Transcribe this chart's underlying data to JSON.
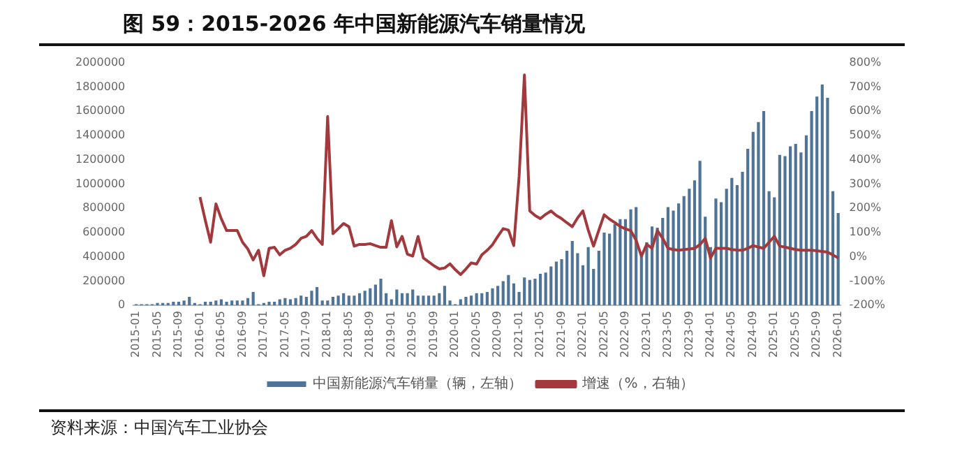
{
  "chart_data": {
    "type": "bar",
    "title": "图 59：2015-2026 年中国新能源汽车销量情况",
    "categories": [
      "2015-01",
      null,
      null,
      null,
      "2015-05",
      null,
      null,
      null,
      "2015-09",
      null,
      null,
      null,
      "2016-01",
      null,
      null,
      null,
      "2016-05",
      null,
      null,
      null,
      "2016-09",
      null,
      null,
      null,
      "2017-01",
      null,
      null,
      null,
      "2017-05",
      null,
      null,
      null,
      "2017-09",
      null,
      null,
      null,
      "2018-01",
      null,
      null,
      null,
      "2018-05",
      null,
      null,
      null,
      "2018-09",
      null,
      null,
      null,
      "2019-01",
      null,
      null,
      null,
      "2019-05",
      null,
      null,
      null,
      "2019-09",
      null,
      null,
      null,
      "2020-01",
      null,
      null,
      null,
      "2020-05",
      null,
      null,
      null,
      "2020-09",
      null,
      null,
      null,
      "2021-01",
      null,
      null,
      null,
      "2021-05",
      null,
      null,
      null,
      "2021-09",
      null,
      null,
      null,
      "2022-01",
      null,
      null,
      null,
      "2022-05",
      null,
      null,
      null,
      "2022-09",
      null,
      null,
      null,
      "2023-01",
      null,
      null,
      null,
      "2023-05",
      null,
      null,
      null,
      "2023-09",
      null,
      null,
      null,
      "2024-01",
      null,
      null,
      null,
      "2024-05",
      null,
      null,
      null,
      "2024-09",
      null,
      null,
      null,
      "2025-01",
      null,
      null,
      null,
      "2025-05",
      null,
      null,
      null,
      "2025-09",
      null,
      null,
      null,
      "2026-01"
    ],
    "series": [
      {
        "name": "中国新能源汽车销量（辆，左轴）",
        "color": "#4f7497",
        "values": [
          10000,
          10000,
          10000,
          10000,
          20000,
          20000,
          20000,
          30000,
          30000,
          40000,
          70000,
          20000,
          10000,
          30000,
          30000,
          40000,
          50000,
          30000,
          40000,
          40000,
          40000,
          60000,
          110000,
          10000,
          20000,
          30000,
          30000,
          50000,
          60000,
          50000,
          60000,
          80000,
          70000,
          120000,
          150000,
          40000,
          40000,
          70000,
          80000,
          100000,
          80000,
          80000,
          100000,
          120000,
          140000,
          170000,
          220000,
          100000,
          50000,
          130000,
          100000,
          100000,
          130000,
          80000,
          80000,
          80000,
          80000,
          100000,
          160000,
          40000,
          10000,
          50000,
          70000,
          80000,
          100000,
          100000,
          110000,
          140000,
          160000,
          200000,
          250000,
          180000,
          110000,
          230000,
          210000,
          220000,
          260000,
          270000,
          320000,
          360000,
          380000,
          450000,
          530000,
          430000,
          330000,
          480000,
          300000,
          450000,
          600000,
          590000,
          670000,
          710000,
          710000,
          790000,
          810000,
          410000,
          520000,
          650000,
          640000,
          720000,
          810000,
          780000,
          840000,
          900000,
          960000,
          1030000,
          1190000,
          730000,
          480000,
          880000,
          850000,
          960000,
          1050000,
          990000,
          1100000,
          1290000,
          1430000,
          1510000,
          1600000,
          940000,
          890000,
          1240000,
          1230000,
          1310000,
          1330000,
          1260000,
          1400000,
          1600000,
          1720000,
          1820000,
          1710000,
          940000,
          760000
        ]
      },
      {
        "name": "增速（%，右轴）",
        "type": "line",
        "axis": "y2",
        "color": "#a23a3d",
        "values": [
          null,
          null,
          null,
          null,
          null,
          null,
          null,
          null,
          null,
          null,
          null,
          null,
          246,
          150,
          60,
          218,
          157,
          108,
          108,
          108,
          60,
          32,
          -13,
          27,
          -78,
          35,
          39,
          8,
          27,
          35,
          51,
          76,
          84,
          108,
          76,
          51,
          578,
          95,
          116,
          137,
          124,
          44,
          51,
          51,
          54,
          46,
          39,
          39,
          149,
          41,
          84,
          11,
          3,
          84,
          -5,
          -21,
          -37,
          -50,
          -46,
          -29,
          -53,
          -73,
          -50,
          -25,
          -30,
          8,
          27,
          50,
          84,
          116,
          110,
          46,
          330,
          749,
          189,
          170,
          157,
          175,
          189,
          170,
          157,
          140,
          124,
          160,
          189,
          110,
          44,
          110,
          173,
          155,
          141,
          125,
          115,
          108,
          68,
          3,
          51,
          35,
          108,
          76,
          35,
          30,
          27,
          30,
          32,
          35,
          50,
          76,
          -5,
          35,
          35,
          35,
          30,
          28,
          27,
          35,
          46,
          40,
          35,
          60,
          84,
          44,
          40,
          35,
          30,
          27,
          27,
          27,
          25,
          22,
          19,
          8,
          -5
        ]
      }
    ],
    "ylim": [
      0,
      2000000
    ],
    "yticks": [
      0,
      200000,
      400000,
      600000,
      800000,
      1000000,
      1200000,
      1400000,
      1600000,
      1800000,
      2000000
    ],
    "y2lim": [
      -200,
      800
    ],
    "y2ticks": [
      {
        "value": -200,
        "label": "-200%"
      },
      {
        "value": -100,
        "label": "-100%"
      },
      {
        "value": 0,
        "label": "0%"
      },
      {
        "value": 100,
        "label": "100%"
      },
      {
        "value": 200,
        "label": "200%"
      },
      {
        "value": 300,
        "label": "300%"
      },
      {
        "value": 400,
        "label": "400%"
      },
      {
        "value": 500,
        "label": "500%"
      },
      {
        "value": 600,
        "label": "600%"
      },
      {
        "value": 700,
        "label": "700%"
      },
      {
        "value": 800,
        "label": "800%"
      }
    ],
    "marker": "none",
    "line_style": "solid",
    "grid": false,
    "legend": "bottom",
    "annotations": [
      "资料来源：中国汽车工业协会"
    ]
  }
}
